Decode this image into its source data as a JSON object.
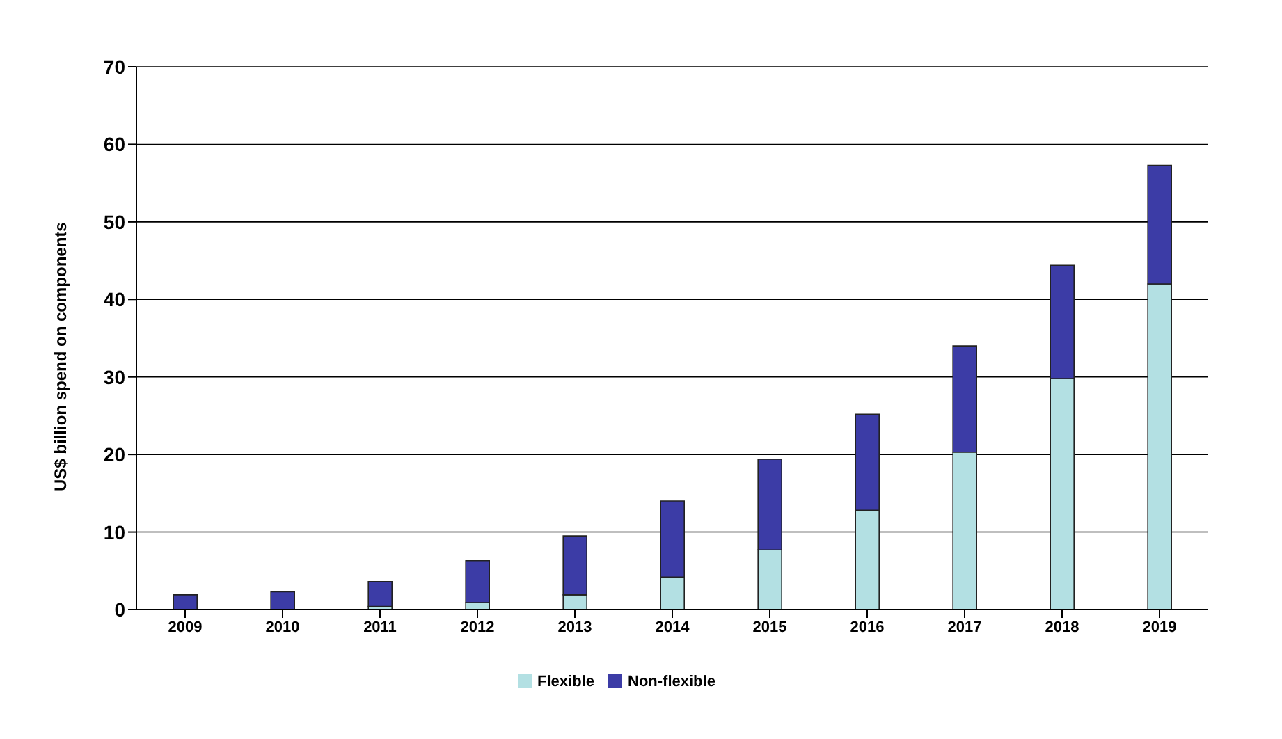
{
  "chart_data": {
    "type": "bar",
    "stacked": true,
    "ylabel": "US$ billion spend on components",
    "categories": [
      "2009",
      "2010",
      "2011",
      "2012",
      "2013",
      "2014",
      "2015",
      "2016",
      "2017",
      "2018",
      "2019"
    ],
    "series": [
      {
        "name": "Flexible",
        "color": "#b3e0e3",
        "values": [
          null,
          null,
          0.4,
          0.9,
          1.9,
          4.2,
          7.7,
          12.8,
          20.3,
          29.8,
          42
        ]
      },
      {
        "name": "Non-flexible",
        "color": "#3c3ca6",
        "values": [
          1.9,
          2.3,
          3.2,
          5.4,
          7.6,
          9.8,
          11.7,
          12.4,
          13.7,
          14.6,
          15.3
        ]
      }
    ],
    "ylim": [
      0,
      70
    ],
    "yticks": [
      0,
      10,
      20,
      30,
      40,
      50,
      60,
      70
    ],
    "grid": "y",
    "legend": "bottom"
  }
}
